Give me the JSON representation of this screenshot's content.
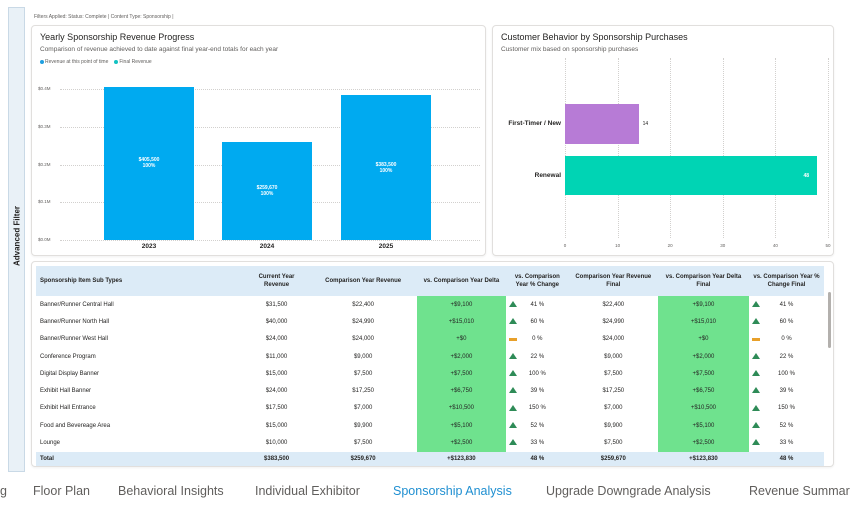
{
  "sidebar": {
    "label": "Advanced Filter"
  },
  "filters": {
    "text": "Filters Applied: Status: Complete | Content Type: Sponsorship |"
  },
  "revenue_chart": {
    "title": "Yearly Sponsorship Revenue Progress",
    "subtitle": "Comparison of revenue achieved to date against final year-end totals for each year",
    "legend": [
      {
        "label": "Revenue at this point of time",
        "color": "#1f9fe0"
      },
      {
        "label": "Final Revenue",
        "color": "#12c2c2"
      }
    ],
    "bar_labels": [
      {
        "value": "$405,500",
        "pct": "100%"
      },
      {
        "value": "$259,670",
        "pct": "100%"
      },
      {
        "value": "$383,500",
        "pct": "100%"
      }
    ]
  },
  "behavior_chart": {
    "title": "Customer Behavior by Sponsorship Purchases",
    "subtitle": "Customer mix based on sponsorship purchases"
  },
  "chart_data": [
    {
      "type": "bar",
      "title": "Yearly Sponsorship Revenue Progress",
      "categories": [
        "2023",
        "2024",
        "2025"
      ],
      "values": [
        405500,
        259670,
        383500
      ],
      "ytick_labels": [
        "$0.0M",
        "$0.1M",
        "$0.2M",
        "$0.3M",
        "$0.4M"
      ],
      "ylim": [
        0,
        400000
      ],
      "color": "#00aaf0",
      "grid": true,
      "legend": "top-left"
    },
    {
      "type": "bar",
      "orientation": "horizontal",
      "title": "Customer Behavior by Sponsorship Purchases",
      "categories": [
        "First-Timer / New",
        "Renewal"
      ],
      "values": [
        14,
        48
      ],
      "colors": [
        "#b77bd6",
        "#00d4b4"
      ],
      "xlim": [
        0,
        50
      ],
      "xticks": [
        "0",
        "10",
        "20",
        "30",
        "40",
        "50"
      ],
      "grid": true
    }
  ],
  "table": {
    "headers": [
      "Sponsorship Item Sub Types",
      "Current Year Revenue",
      "Comparison Year Revenue",
      "vs. Comparison Year Delta",
      "vs. Comparison Year % Change",
      "Comparison Year Revenue Final",
      "vs. Comparison Year Delta Final",
      "vs. Comparison Year % Change Final"
    ],
    "rows": [
      {
        "name": "Banner/Runner Central Hall",
        "current": "$31,500",
        "comparison": "$22,400",
        "delta": "+$9,100",
        "pct": "41 %",
        "trend": "up",
        "comp_final": "$22,400",
        "delta_final": "+$9,100",
        "pct_final": "41 %"
      },
      {
        "name": "Banner/Runner North Hall",
        "current": "$40,000",
        "comparison": "$24,990",
        "delta": "+$15,010",
        "pct": "60 %",
        "trend": "up",
        "comp_final": "$24,990",
        "delta_final": "+$15,010",
        "pct_final": "60 %"
      },
      {
        "name": "Banner/Runner West Hall",
        "current": "$24,000",
        "comparison": "$24,000",
        "delta": "+$0",
        "pct": "0 %",
        "trend": "flat",
        "comp_final": "$24,000",
        "delta_final": "+$0",
        "pct_final": "0 %"
      },
      {
        "name": "Conference Program",
        "current": "$11,000",
        "comparison": "$9,000",
        "delta": "+$2,000",
        "pct": "22 %",
        "trend": "up",
        "comp_final": "$9,000",
        "delta_final": "+$2,000",
        "pct_final": "22 %"
      },
      {
        "name": "Digital Display Banner",
        "current": "$15,000",
        "comparison": "$7,500",
        "delta": "+$7,500",
        "pct": "100 %",
        "trend": "up",
        "comp_final": "$7,500",
        "delta_final": "+$7,500",
        "pct_final": "100 %"
      },
      {
        "name": "Exhibit Hall Banner",
        "current": "$24,000",
        "comparison": "$17,250",
        "delta": "+$6,750",
        "pct": "39 %",
        "trend": "up",
        "comp_final": "$17,250",
        "delta_final": "+$6,750",
        "pct_final": "39 %"
      },
      {
        "name": "Exhibit Hall Entrance",
        "current": "$17,500",
        "comparison": "$7,000",
        "delta": "+$10,500",
        "pct": "150 %",
        "trend": "up",
        "comp_final": "$7,000",
        "delta_final": "+$10,500",
        "pct_final": "150 %"
      },
      {
        "name": "Food and Bevereage Area",
        "current": "$15,000",
        "comparison": "$9,900",
        "delta": "+$5,100",
        "pct": "52 %",
        "trend": "up",
        "comp_final": "$9,900",
        "delta_final": "+$5,100",
        "pct_final": "52 %"
      },
      {
        "name": "Lounge",
        "current": "$10,000",
        "comparison": "$7,500",
        "delta": "+$2,500",
        "pct": "33 %",
        "trend": "up",
        "comp_final": "$7,500",
        "delta_final": "+$2,500",
        "pct_final": "33 %"
      }
    ],
    "total": {
      "name": "Total",
      "current": "$383,500",
      "comparison": "$259,670",
      "delta": "+$123,830",
      "pct": "48 %",
      "comp_final": "$259,670",
      "delta_final": "+$123,830",
      "pct_final": "48 %"
    }
  },
  "tabs": [
    {
      "label": "g"
    },
    {
      "label": "Floor Plan"
    },
    {
      "label": "Behavioral Insights"
    },
    {
      "label": "Individual Exhibitor"
    },
    {
      "label": "Sponsorship Analysis",
      "active": true
    },
    {
      "label": "Upgrade Downgrade Analysis"
    },
    {
      "label": "Revenue Summar"
    }
  ]
}
